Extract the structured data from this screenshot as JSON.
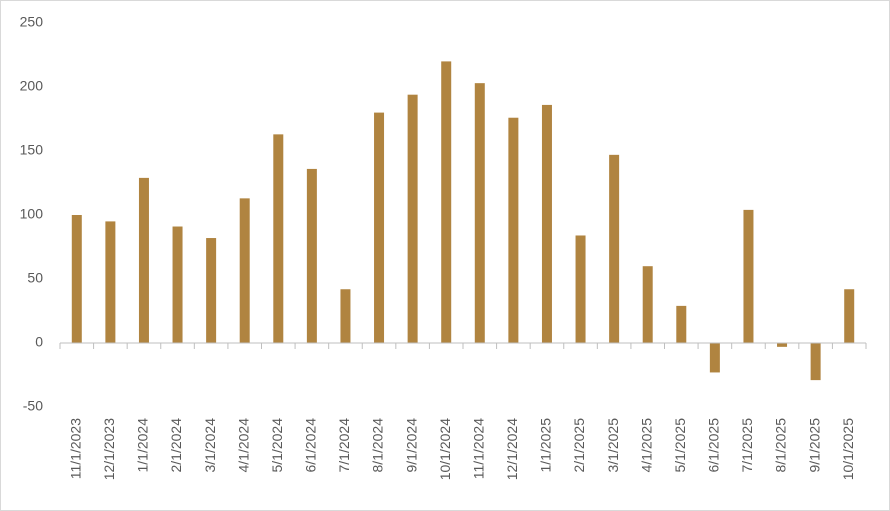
{
  "chart_data": {
    "type": "bar",
    "categories": [
      "11/1/2023",
      "12/1/2023",
      "1/1/2024",
      "2/1/2024",
      "3/1/2024",
      "4/1/2024",
      "5/1/2024",
      "6/1/2024",
      "7/1/2024",
      "8/1/2024",
      "9/1/2024",
      "10/1/2024",
      "11/1/2024",
      "12/1/2024",
      "1/1/2025",
      "2/1/2025",
      "3/1/2025",
      "4/1/2025",
      "5/1/2025",
      "6/1/2025",
      "7/1/2025",
      "8/1/2025",
      "9/1/2025",
      "10/1/2025"
    ],
    "values": [
      100,
      95,
      129,
      91,
      82,
      113,
      163,
      136,
      42,
      180,
      194,
      220,
      203,
      176,
      186,
      84,
      147,
      60,
      29,
      -23,
      104,
      -3,
      -29,
      42
    ],
    "color": "#b08440",
    "ylim": [
      -50,
      250
    ],
    "yticks": [
      -50,
      0,
      50,
      100,
      150,
      200,
      250
    ],
    "grid": false
  }
}
